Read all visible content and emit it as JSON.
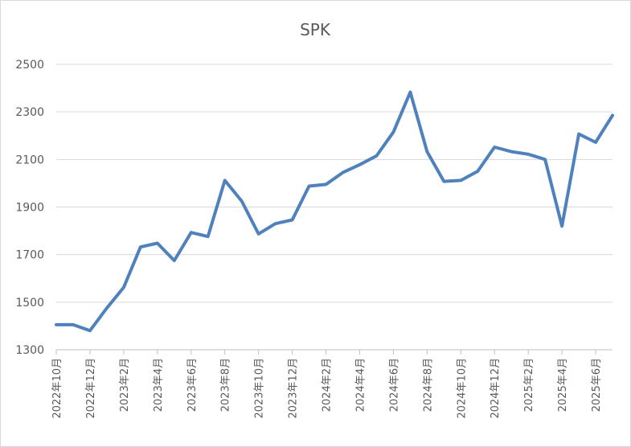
{
  "chart_data": {
    "type": "line",
    "title": "SPK",
    "xlabel": "",
    "ylabel": "",
    "ylim": [
      1300,
      2500
    ],
    "yticks": [
      1300,
      1500,
      1700,
      1900,
      2100,
      2300,
      2500
    ],
    "grid": "horizontal",
    "x": [
      "2022年10月",
      "2022年11月",
      "2022年12月",
      "2023年1月",
      "2023年2月",
      "2023年3月",
      "2023年4月",
      "2023年5月",
      "2023年6月",
      "2023年7月",
      "2023年8月",
      "2023年9月",
      "2023年10月",
      "2023年11月",
      "2023年12月",
      "2024年1月",
      "2024年2月",
      "2024年3月",
      "2024年4月",
      "2024年5月",
      "2024年6月",
      "2024年7月",
      "2024年8月",
      "2024年9月",
      "2024年10月",
      "2024年11月",
      "2024年12月",
      "2025年1月",
      "2025年2月",
      "2025年3月",
      "2025年4月",
      "2025年5月",
      "2025年6月",
      "2025年7月"
    ],
    "xtick_labels": [
      "2022年10月",
      "2022年12月",
      "2023年2月",
      "2023年4月",
      "2023年6月",
      "2023年8月",
      "2023年10月",
      "2023年12月",
      "2024年2月",
      "2024年4月",
      "2024年6月",
      "2024年8月",
      "2024年10月",
      "2024年12月",
      "2025年2月",
      "2025年4月",
      "2025年6月"
    ],
    "series": [
      {
        "color": "#4f81bd",
        "values": [
          1405,
          1405,
          1380,
          1475,
          1562,
          1732,
          1748,
          1675,
          1793,
          1776,
          2012,
          1925,
          1787,
          1830,
          1846,
          1988,
          1995,
          2045,
          2078,
          2115,
          2215,
          2383,
          2133,
          2008,
          2012,
          2050,
          2152,
          2133,
          2122,
          2100,
          1820,
          2207,
          2172,
          2285
        ]
      }
    ]
  }
}
